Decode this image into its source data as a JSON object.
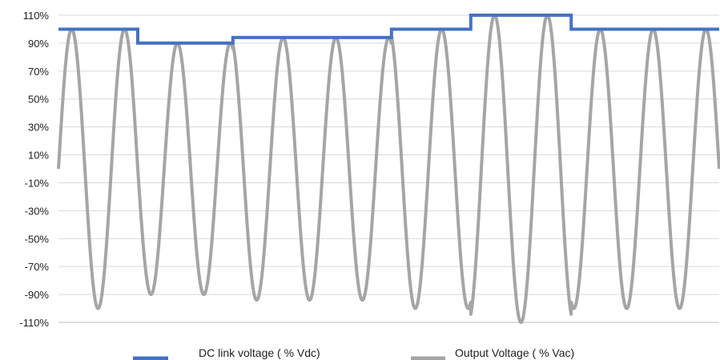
{
  "chart_data": {
    "type": "line",
    "title": "",
    "xlabel": "",
    "ylabel": "",
    "ylim": [
      -110,
      110
    ],
    "y_ticks": [
      "110%",
      "90%",
      "70%",
      "50%",
      "30%",
      "10%",
      "-10%",
      "-30%",
      "-50%",
      "-70%",
      "-90%",
      "-110%"
    ],
    "y_tick_values": [
      110,
      90,
      70,
      50,
      30,
      10,
      -10,
      -30,
      -50,
      -70,
      -90,
      -110
    ],
    "grid": true,
    "legend_position": "bottom",
    "x_range": [
      0,
      12.5
    ],
    "series": [
      {
        "name": "DC link voltage ( % Vdc)",
        "color": "#4472C4",
        "kind": "step",
        "points": [
          [
            0,
            100
          ],
          [
            1.5,
            100
          ],
          [
            1.5,
            90
          ],
          [
            3.3,
            90
          ],
          [
            3.3,
            94
          ],
          [
            6.3,
            94
          ],
          [
            6.3,
            100
          ],
          [
            7.8,
            100
          ],
          [
            7.8,
            110
          ],
          [
            9.7,
            110
          ],
          [
            9.7,
            100
          ],
          [
            12.5,
            100
          ]
        ]
      },
      {
        "name": "Output Voltage ( % Vac)",
        "color": "#A5A5A5",
        "kind": "sine",
        "cycles": 12.5,
        "amplitude_envelope": [
          [
            0,
            1.5,
            100
          ],
          [
            1.5,
            3.3,
            90
          ],
          [
            3.3,
            6.3,
            94
          ],
          [
            6.3,
            7.8,
            100
          ],
          [
            7.8,
            9.7,
            110
          ],
          [
            9.7,
            12.5,
            100
          ]
        ]
      }
    ]
  }
}
